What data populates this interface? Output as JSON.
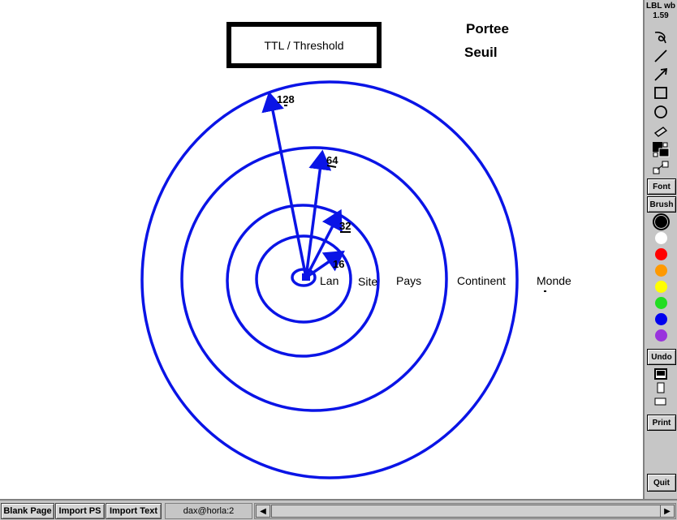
{
  "canvas": {
    "box_title": "TTL / Threshold",
    "heading_portee": "Portee",
    "heading_seuil": "Seuil",
    "ttl_labels": [
      "128",
      "64",
      "32",
      "16"
    ],
    "scope_labels": [
      "Lan",
      "Site",
      "Pays",
      "Continent",
      "Monde"
    ],
    "stroke_color": "#0a14e6"
  },
  "palette": {
    "title_line1": "LBL wb",
    "title_line2": "1.59",
    "tools": [
      "lasso-icon",
      "line-icon",
      "arrow-icon",
      "rectangle-icon",
      "circle-icon",
      "eraser-icon",
      "color-fill-icon",
      "resize-icon"
    ],
    "font_label": "Font",
    "brush_label": "Brush",
    "colors": [
      "#000000",
      "#ffffff",
      "#ff0000",
      "#ff9900",
      "#ffff00",
      "#22dd22",
      "#0000ee",
      "#9933dd"
    ],
    "undo_label": "Undo",
    "print_label": "Print",
    "quit_label": "Quit"
  },
  "bottombar": {
    "blank_page": "Blank Page",
    "import_ps": "Import PS",
    "import_text": "Import Text",
    "status": "dax@horla:2"
  }
}
